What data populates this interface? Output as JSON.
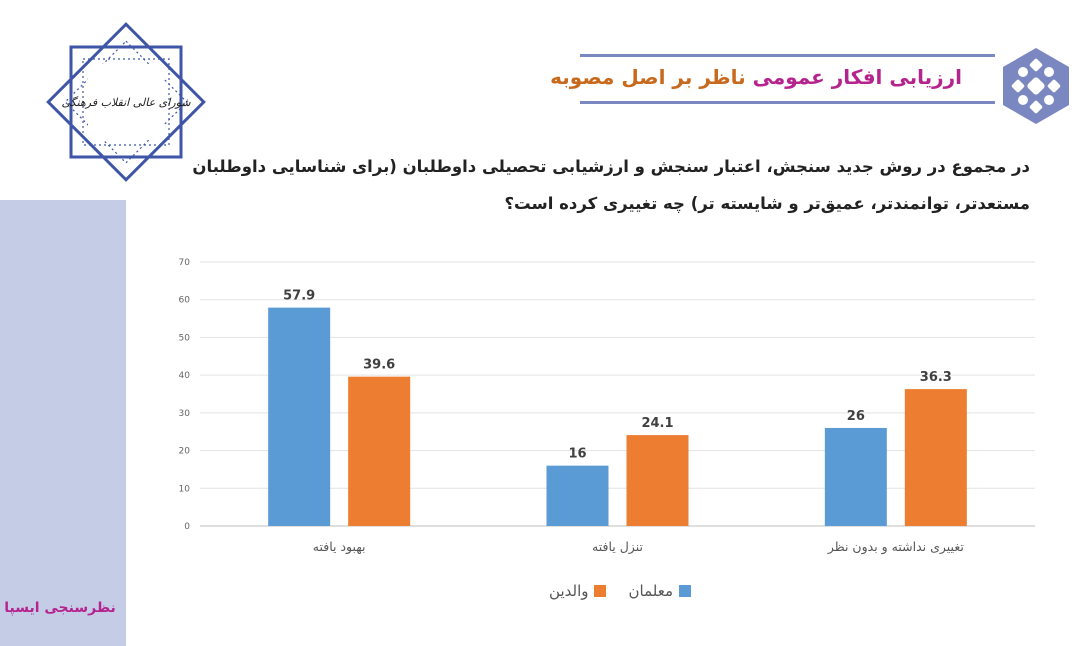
{
  "header": {
    "title_part1": "ارزیابی افکار عمومی",
    "title_part2": "ناظر بر اصل مصوبه",
    "accent_color": "#b5238f",
    "secondary_color": "#c86a1d",
    "band_color": "#7a87c1"
  },
  "logo": {
    "text": "شورای عالی انقلاب فرهنگی",
    "icon": "octagram-seal-icon"
  },
  "footer": {
    "brand": "نظرسنجی ایسپا"
  },
  "question": {
    "line1": "در مجموع در روش جدید سنجش، اعتبار سنجش و ارزشیابی تحصیلی داوطلبان (برای شناسایی داوطلبان",
    "line2": "مستعدتر، توانمندتر، عمیق‌تر و شایسته تر) چه تغییری کرده است؟"
  },
  "chart_data": {
    "type": "bar",
    "categories": [
      "بهبود یافته",
      "تنزل یافته",
      "تغییری نداشته و بدون نظر"
    ],
    "series": [
      {
        "name": "معلمان",
        "values": [
          57.9,
          16,
          26
        ],
        "color": "#5b9bd5"
      },
      {
        "name": "والدین",
        "values": [
          39.6,
          24.1,
          36.3
        ],
        "color": "#ed7d31"
      }
    ],
    "yticks": [
      0,
      10,
      20,
      30,
      40,
      50,
      60,
      70
    ],
    "ylim": [
      0,
      70
    ],
    "grid": true,
    "legend_position": "bottom"
  }
}
